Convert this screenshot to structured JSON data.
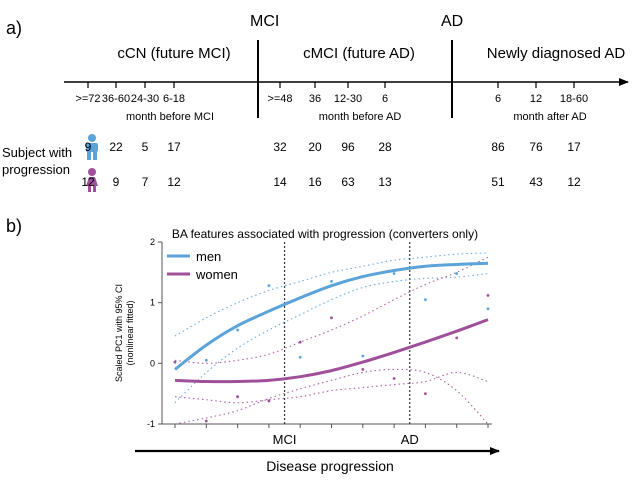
{
  "panel_a": {
    "label": "a)",
    "stages": [
      {
        "title": "cCN (future MCI)",
        "ticks": [
          ">=72",
          "36-60",
          "24-30",
          "6-18"
        ],
        "unit": "month before MCI",
        "men": [
          "9",
          "22",
          "5",
          "17"
        ],
        "women": [
          "12",
          "9",
          "7",
          "12"
        ]
      },
      {
        "title": "cMCI (future AD)",
        "ticks": [
          ">=48",
          "36",
          "12-30",
          "6"
        ],
        "unit": "month before AD",
        "men": [
          "32",
          "20",
          "96",
          "28"
        ],
        "women": [
          "14",
          "16",
          "63",
          "13"
        ]
      },
      {
        "title": "Newly diagnosed AD",
        "ticks": [
          "6",
          "12",
          "18-60"
        ],
        "unit": "month after AD",
        "men": [
          "86",
          "76",
          "17"
        ],
        "women": [
          "51",
          "43",
          "12"
        ]
      }
    ],
    "milestones": [
      "MCI",
      "AD"
    ],
    "row_label_line1": "Subject with",
    "row_label_line2": "progression",
    "colors": {
      "men": "#5ba3d9",
      "women": "#a0509a"
    },
    "icons": {
      "men": "male-person-icon",
      "women": "female-person-icon"
    }
  },
  "panel_b": {
    "label": "b)",
    "xaxis_arrow_label": "Disease progression",
    "chart_data": {
      "type": "line",
      "title": "BA features associated with progression (converters only)",
      "ylabel_line1": "Scaled PC1 with 95% CI",
      "ylabel_line2": "(nonlinear fitted)",
      "ylim": [
        -1,
        2
      ],
      "yticks": [
        "-1",
        "0",
        "1",
        "2"
      ],
      "xlim": [
        0,
        10
      ],
      "x_markers": [
        {
          "label": "MCI",
          "x": 3.5
        },
        {
          "label": "AD",
          "x": 7.5
        }
      ],
      "legend_position": "top-left",
      "series": [
        {
          "name": "men",
          "color": "#5ba3d9",
          "x": [
            0,
            1,
            2,
            3,
            4,
            5,
            6,
            7,
            8,
            9,
            10
          ],
          "fit": [
            -0.1,
            0.3,
            0.62,
            0.86,
            1.08,
            1.28,
            1.43,
            1.53,
            1.6,
            1.63,
            1.65
          ],
          "ci_upper": [
            0.45,
            0.75,
            1.0,
            1.2,
            1.35,
            1.5,
            1.6,
            1.7,
            1.75,
            1.8,
            1.82
          ],
          "ci_lower": [
            -0.65,
            -0.15,
            0.25,
            0.55,
            0.8,
            1.05,
            1.25,
            1.35,
            1.4,
            1.42,
            1.48
          ],
          "points_x": [
            0,
            1,
            2,
            3,
            4,
            5,
            6,
            7,
            8,
            9,
            10
          ],
          "points_y": [
            0.02,
            0.05,
            0.55,
            1.28,
            0.1,
            1.35,
            0.12,
            1.48,
            1.05,
            1.48,
            0.9
          ]
        },
        {
          "name": "women",
          "color": "#a0509a",
          "x": [
            0,
            1,
            2,
            3,
            4,
            5,
            6,
            7,
            8,
            9,
            10
          ],
          "fit": [
            -0.28,
            -0.3,
            -0.3,
            -0.28,
            -0.22,
            -0.12,
            0.02,
            0.18,
            0.35,
            0.53,
            0.72
          ],
          "ci_upper": [
            0.05,
            0.0,
            0.05,
            0.15,
            0.35,
            0.55,
            0.78,
            1.05,
            1.3,
            1.5,
            1.75
          ],
          "ci_lower": [
            -0.55,
            -0.6,
            -0.65,
            -0.6,
            -0.55,
            -0.45,
            -0.4,
            -0.35,
            -0.3,
            -0.15,
            -0.3
          ],
          "ci_outer_lower": [
            -1.0,
            -0.9,
            -0.78,
            -0.58,
            -0.42,
            -0.28,
            -0.15,
            -0.1,
            -0.15,
            -0.45,
            -1.0
          ],
          "points_x": [
            0,
            1,
            2,
            3,
            4,
            5,
            6,
            7,
            8,
            9,
            10
          ],
          "points_y": [
            0.02,
            -0.95,
            -0.55,
            -0.62,
            0.35,
            0.75,
            -0.1,
            -0.25,
            -0.5,
            0.42,
            1.12
          ]
        }
      ]
    }
  }
}
